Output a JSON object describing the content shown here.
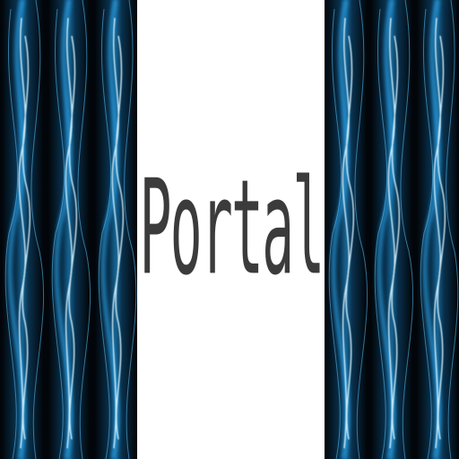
{
  "title": {
    "text": "Portal",
    "color": "#3b3b3b"
  },
  "panels": {
    "left": {
      "image": "blue-energy-swirl",
      "colors": {
        "background": "#02060a",
        "glow": "#1f8fd0",
        "highlight": "#cfefff"
      }
    },
    "center": {
      "background": "#ffffff"
    },
    "right": {
      "image": "blue-energy-swirl",
      "colors": {
        "background": "#02060a",
        "glow": "#1f8fd0",
        "highlight": "#cfefff"
      }
    }
  }
}
